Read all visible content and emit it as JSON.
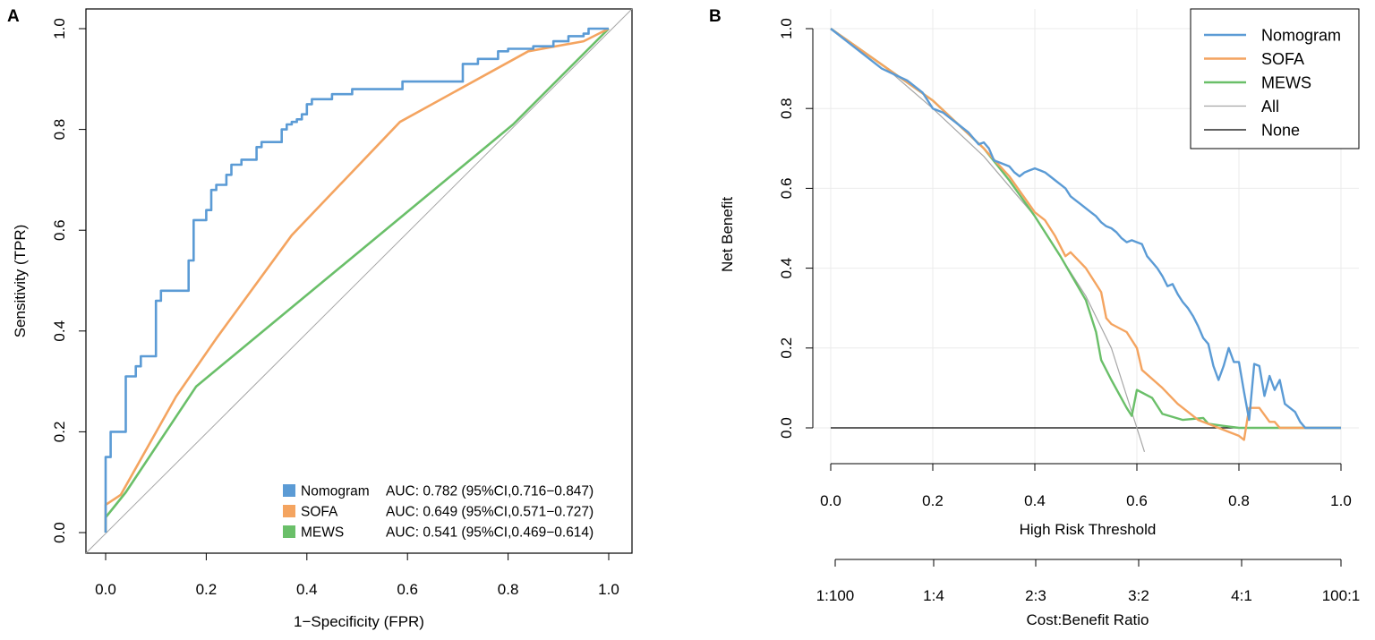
{
  "chart_data": [
    {
      "panel": "A",
      "type": "line",
      "xlabel": "1−Specificity (FPR)",
      "ylabel": "Sensitivity (TPR)",
      "xlim": [
        0,
        1
      ],
      "ylim": [
        0,
        1
      ],
      "xticks": [
        "0.0",
        "0.2",
        "0.4",
        "0.6",
        "0.8",
        "1.0"
      ],
      "yticks": [
        "0.0",
        "0.2",
        "0.4",
        "0.6",
        "0.8",
        "1.0"
      ],
      "reference_line": {
        "x": [
          0,
          1
        ],
        "y": [
          0,
          1
        ],
        "color": "#a6a6a6"
      },
      "legend_position": "bottom-right",
      "series": [
        {
          "name": "Nomogram",
          "auc_text": "AUC: 0.782 (95%CI,0.716−0.847)",
          "color": "#5b9bd5",
          "step": true,
          "x": [
            0,
            0,
            0.01,
            0.01,
            0.04,
            0.04,
            0.06,
            0.06,
            0.07,
            0.07,
            0.1,
            0.1,
            0.11,
            0.11,
            0.165,
            0.165,
            0.175,
            0.175,
            0.2,
            0.2,
            0.21,
            0.21,
            0.22,
            0.22,
            0.24,
            0.24,
            0.25,
            0.25,
            0.27,
            0.27,
            0.3,
            0.3,
            0.31,
            0.31,
            0.35,
            0.35,
            0.36,
            0.36,
            0.37,
            0.37,
            0.38,
            0.38,
            0.39,
            0.39,
            0.4,
            0.4,
            0.41,
            0.41,
            0.45,
            0.45,
            0.49,
            0.49,
            0.59,
            0.59,
            0.71,
            0.71,
            0.74,
            0.74,
            0.78,
            0.78,
            0.8,
            0.8,
            0.85,
            0.85,
            0.89,
            0.89,
            0.92,
            0.92,
            0.95,
            0.95,
            0.96,
            0.96,
            1.0
          ],
          "y": [
            0,
            0.15,
            0.15,
            0.2,
            0.2,
            0.31,
            0.31,
            0.33,
            0.33,
            0.35,
            0.35,
            0.46,
            0.46,
            0.48,
            0.48,
            0.54,
            0.54,
            0.62,
            0.62,
            0.64,
            0.64,
            0.68,
            0.68,
            0.69,
            0.69,
            0.71,
            0.71,
            0.73,
            0.73,
            0.74,
            0.74,
            0.765,
            0.765,
            0.775,
            0.775,
            0.8,
            0.8,
            0.81,
            0.81,
            0.815,
            0.815,
            0.82,
            0.82,
            0.83,
            0.83,
            0.85,
            0.85,
            0.86,
            0.86,
            0.87,
            0.87,
            0.88,
            0.88,
            0.895,
            0.895,
            0.93,
            0.93,
            0.94,
            0.94,
            0.955,
            0.955,
            0.96,
            0.96,
            0.965,
            0.965,
            0.975,
            0.975,
            0.985,
            0.985,
            0.99,
            0.99,
            1.0,
            1.0
          ]
        },
        {
          "name": "SOFA",
          "auc_text": "AUC: 0.649 (95%CI,0.571−0.727)",
          "color": "#f4a460",
          "step": false,
          "x": [
            0,
            0,
            0.03,
            0.14,
            0.22,
            0.37,
            0.585,
            0.84,
            0.95,
            1.0
          ],
          "y": [
            0,
            0.055,
            0.075,
            0.27,
            0.385,
            0.59,
            0.815,
            0.955,
            0.975,
            1.0
          ]
        },
        {
          "name": "MEWS",
          "auc_text": "AUC: 0.541 (95%CI,0.469−0.614)",
          "color": "#6abf69",
          "step": false,
          "x": [
            0,
            0,
            0.04,
            0.18,
            0.81,
            1.0
          ],
          "y": [
            0,
            0.03,
            0.08,
            0.29,
            0.81,
            1.0
          ]
        }
      ]
    },
    {
      "panel": "B",
      "type": "line",
      "xlabel": "High Risk Threshold",
      "ylabel": "Net Benefit",
      "xlim": [
        0,
        1
      ],
      "ylim": [
        -0.05,
        1
      ],
      "xticks": [
        "0.0",
        "0.2",
        "0.4",
        "0.6",
        "0.8",
        "1.0"
      ],
      "yticks": [
        "0.0",
        "0.2",
        "0.4",
        "0.6",
        "0.8",
        "1.0"
      ],
      "secondary_axis_label": "Cost:Benefit Ratio",
      "secondary_ticks": [
        "1:100",
        "1:4",
        "2:3",
        "3:2",
        "4:1",
        "100:1"
      ],
      "legend_position": "top-right",
      "grid": true,
      "series": [
        {
          "name": "Nomogram",
          "color": "#5b9bd5",
          "x": [
            0,
            0.05,
            0.1,
            0.15,
            0.18,
            0.2,
            0.22,
            0.25,
            0.27,
            0.29,
            0.3,
            0.31,
            0.32,
            0.33,
            0.34,
            0.35,
            0.36,
            0.37,
            0.38,
            0.39,
            0.4,
            0.41,
            0.42,
            0.43,
            0.44,
            0.45,
            0.46,
            0.47,
            0.48,
            0.49,
            0.5,
            0.51,
            0.52,
            0.53,
            0.54,
            0.55,
            0.56,
            0.57,
            0.58,
            0.59,
            0.6,
            0.61,
            0.62,
            0.63,
            0.64,
            0.65,
            0.66,
            0.67,
            0.68,
            0.69,
            0.7,
            0.71,
            0.72,
            0.73,
            0.74,
            0.75,
            0.76,
            0.77,
            0.78,
            0.79,
            0.8,
            0.81,
            0.82,
            0.83,
            0.84,
            0.85,
            0.86,
            0.87,
            0.88,
            0.89,
            0.9,
            0.91,
            0.92,
            0.93,
            1.0
          ],
          "y": [
            1.0,
            0.95,
            0.9,
            0.87,
            0.84,
            0.8,
            0.79,
            0.76,
            0.74,
            0.71,
            0.715,
            0.7,
            0.67,
            0.665,
            0.66,
            0.655,
            0.64,
            0.63,
            0.64,
            0.645,
            0.65,
            0.645,
            0.64,
            0.63,
            0.62,
            0.61,
            0.6,
            0.58,
            0.57,
            0.56,
            0.55,
            0.54,
            0.53,
            0.515,
            0.505,
            0.5,
            0.49,
            0.475,
            0.465,
            0.47,
            0.465,
            0.46,
            0.43,
            0.415,
            0.4,
            0.38,
            0.355,
            0.36,
            0.335,
            0.315,
            0.3,
            0.28,
            0.255,
            0.225,
            0.21,
            0.155,
            0.12,
            0.155,
            0.2,
            0.165,
            0.165,
            0.09,
            0.02,
            0.16,
            0.155,
            0.08,
            0.13,
            0.095,
            0.12,
            0.06,
            0.05,
            0.04,
            0.015,
            0.0,
            0.0
          ]
        },
        {
          "name": "SOFA",
          "color": "#f4a460",
          "x": [
            0,
            0.1,
            0.2,
            0.3,
            0.35,
            0.4,
            0.42,
            0.44,
            0.46,
            0.47,
            0.5,
            0.52,
            0.53,
            0.54,
            0.55,
            0.58,
            0.6,
            0.61,
            0.65,
            0.68,
            0.72,
            0.75,
            0.78,
            0.8,
            0.81,
            0.82,
            0.83,
            0.84,
            0.86,
            0.87,
            0.88,
            0.89,
            1.0
          ],
          "y": [
            1.0,
            0.91,
            0.82,
            0.7,
            0.63,
            0.54,
            0.52,
            0.48,
            0.43,
            0.44,
            0.4,
            0.36,
            0.34,
            0.275,
            0.26,
            0.24,
            0.2,
            0.145,
            0.1,
            0.06,
            0.02,
            0.005,
            -0.01,
            -0.02,
            -0.03,
            0.05,
            0.05,
            0.05,
            0.015,
            0.015,
            0.0,
            0.0,
            0.0
          ]
        },
        {
          "name": "MEWS",
          "color": "#6abf69",
          "x": [
            0,
            0.1,
            0.2,
            0.3,
            0.35,
            0.4,
            0.45,
            0.5,
            0.52,
            0.53,
            0.55,
            0.58,
            0.59,
            0.6,
            0.63,
            0.65,
            0.69,
            0.73,
            0.74,
            0.77,
            0.8,
            0.82,
            1.0
          ],
          "y": [
            1.0,
            0.91,
            0.82,
            0.7,
            0.62,
            0.53,
            0.43,
            0.32,
            0.24,
            0.17,
            0.12,
            0.05,
            0.03,
            0.095,
            0.075,
            0.035,
            0.02,
            0.025,
            0.01,
            0.005,
            0.0,
            0.0,
            0.0
          ]
        },
        {
          "name": "All",
          "color": "#a6a6a6",
          "x": [
            0,
            0.1,
            0.2,
            0.3,
            0.4,
            0.5,
            0.55,
            0.6,
            0.615
          ],
          "y": [
            1.0,
            0.91,
            0.8,
            0.68,
            0.53,
            0.33,
            0.2,
            0.0,
            -0.06
          ]
        },
        {
          "name": "None",
          "color": "#000000",
          "x": [
            0,
            1.0
          ],
          "y": [
            0,
            0
          ]
        }
      ]
    }
  ],
  "panels": {
    "a": {
      "letter": "A"
    },
    "b": {
      "letter": "B"
    }
  }
}
